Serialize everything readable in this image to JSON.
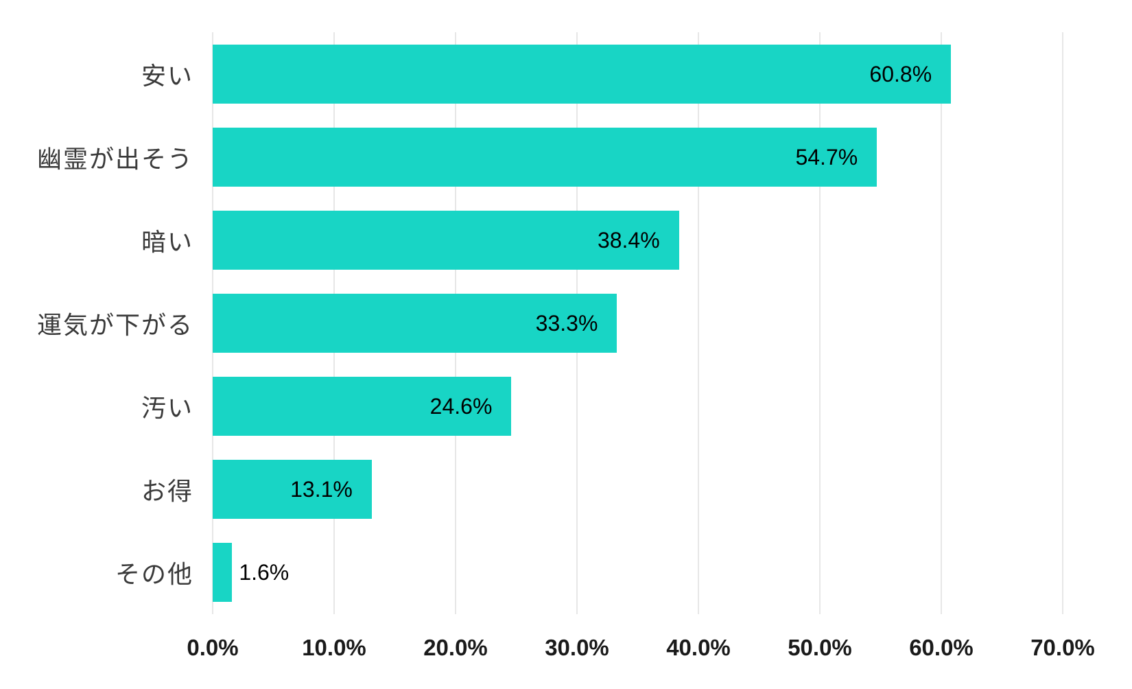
{
  "chart_data": {
    "type": "bar",
    "orientation": "horizontal",
    "title": "",
    "xlabel": "",
    "ylabel": "",
    "categories": [
      "安い",
      "幽霊が出そう",
      "暗い",
      "運気が下がる",
      "汚い",
      "お得",
      "その他"
    ],
    "values": [
      60.8,
      54.7,
      38.4,
      33.3,
      24.6,
      13.1,
      1.6
    ],
    "value_labels": [
      "60.8%",
      "54.7%",
      "38.4%",
      "33.3%",
      "24.6%",
      "13.1%",
      "1.6%"
    ],
    "x_ticks": [
      "0.0%",
      "10.0%",
      "20.0%",
      "30.0%",
      "40.0%",
      "50.0%",
      "60.0%",
      "70.0%"
    ],
    "xlim": [
      0,
      70
    ],
    "grid": true,
    "legend": false,
    "bar_color": "#18d5c5",
    "gridline_color": "#e7e7e7",
    "value_label_color": "#000000",
    "axis_label_color": "#1a1a1a",
    "category_label_color": "#3a3a3a"
  }
}
